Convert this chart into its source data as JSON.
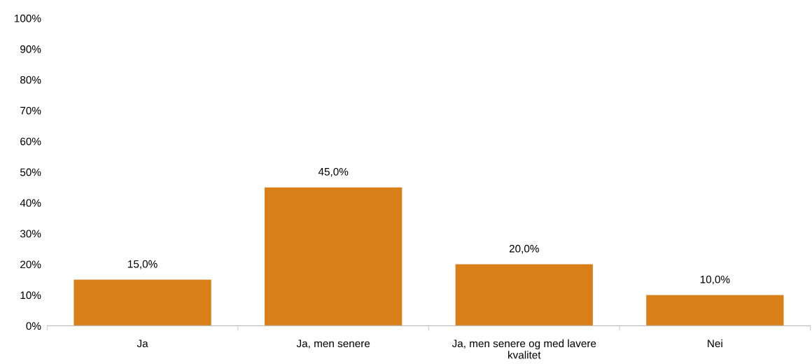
{
  "chart_data": {
    "type": "bar",
    "categories": [
      "Ja",
      "Ja, men senere",
      "Ja, men senere og med lavere\nkvalitet",
      "Nei"
    ],
    "values": [
      15,
      45,
      20,
      10
    ],
    "value_labels": [
      "15,0%",
      "45,0%",
      "20,0%",
      "10,0%"
    ],
    "color": "#d97f17",
    "ylim": [
      0,
      100
    ],
    "yticks": [
      {
        "value": 0,
        "label": "0%"
      },
      {
        "value": 10,
        "label": "10%"
      },
      {
        "value": 20,
        "label": "20%"
      },
      {
        "value": 30,
        "label": "30%"
      },
      {
        "value": 40,
        "label": "40%"
      },
      {
        "value": 50,
        "label": "50%"
      },
      {
        "value": 60,
        "label": "60%"
      },
      {
        "value": 70,
        "label": "70%"
      },
      {
        "value": 80,
        "label": "80%"
      },
      {
        "value": 90,
        "label": "90%"
      },
      {
        "value": 100,
        "label": "100%"
      }
    ],
    "grid": false
  }
}
